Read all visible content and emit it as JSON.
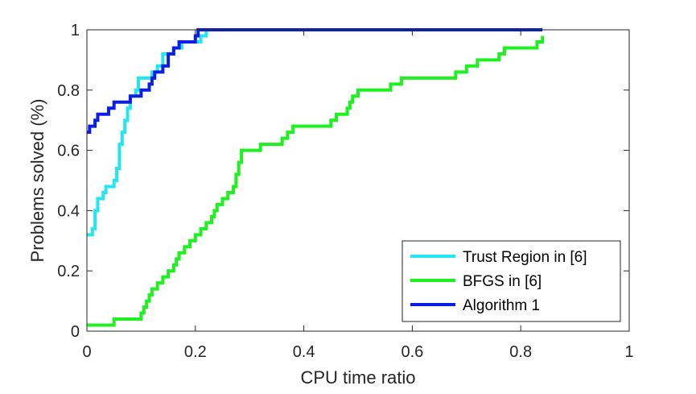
{
  "chart_data": {
    "type": "line",
    "title": "",
    "xlabel": "CPU time ratio",
    "ylabel": "Problems solved (%)",
    "xlim": [
      0,
      1
    ],
    "ylim": [
      0,
      1
    ],
    "xticks": [
      "0",
      "0.2",
      "0.4",
      "0.6",
      "0.8",
      "1"
    ],
    "yticks": [
      "0",
      "0.2",
      "0.4",
      "0.6",
      "0.8",
      "1"
    ],
    "grid": false,
    "legend_position": "bottom-right",
    "series": [
      {
        "name": "Trust Region in [6]",
        "color": "#22e6f0",
        "points": [
          [
            0.0,
            0.32
          ],
          [
            0.01,
            0.34
          ],
          [
            0.015,
            0.4
          ],
          [
            0.02,
            0.44
          ],
          [
            0.03,
            0.46
          ],
          [
            0.035,
            0.48
          ],
          [
            0.05,
            0.5
          ],
          [
            0.055,
            0.54
          ],
          [
            0.06,
            0.62
          ],
          [
            0.065,
            0.66
          ],
          [
            0.07,
            0.7
          ],
          [
            0.075,
            0.74
          ],
          [
            0.08,
            0.78
          ],
          [
            0.09,
            0.8
          ],
          [
            0.095,
            0.84
          ],
          [
            0.12,
            0.86
          ],
          [
            0.13,
            0.88
          ],
          [
            0.14,
            0.92
          ],
          [
            0.16,
            0.94
          ],
          [
            0.175,
            0.96
          ],
          [
            0.21,
            0.98
          ],
          [
            0.22,
            1.0
          ],
          [
            0.84,
            1.0
          ]
        ]
      },
      {
        "name": "BFGS in [6]",
        "color": "#1ff01f",
        "points": [
          [
            0.0,
            0.02
          ],
          [
            0.05,
            0.04
          ],
          [
            0.1,
            0.06
          ],
          [
            0.105,
            0.08
          ],
          [
            0.11,
            0.1
          ],
          [
            0.115,
            0.12
          ],
          [
            0.12,
            0.14
          ],
          [
            0.13,
            0.16
          ],
          [
            0.14,
            0.18
          ],
          [
            0.15,
            0.2
          ],
          [
            0.16,
            0.22
          ],
          [
            0.165,
            0.24
          ],
          [
            0.17,
            0.26
          ],
          [
            0.18,
            0.28
          ],
          [
            0.19,
            0.3
          ],
          [
            0.2,
            0.32
          ],
          [
            0.21,
            0.34
          ],
          [
            0.22,
            0.36
          ],
          [
            0.23,
            0.38
          ],
          [
            0.235,
            0.4
          ],
          [
            0.24,
            0.42
          ],
          [
            0.25,
            0.44
          ],
          [
            0.26,
            0.46
          ],
          [
            0.27,
            0.48
          ],
          [
            0.275,
            0.52
          ],
          [
            0.28,
            0.56
          ],
          [
            0.285,
            0.6
          ],
          [
            0.32,
            0.62
          ],
          [
            0.36,
            0.64
          ],
          [
            0.37,
            0.66
          ],
          [
            0.38,
            0.68
          ],
          [
            0.45,
            0.7
          ],
          [
            0.46,
            0.72
          ],
          [
            0.48,
            0.74
          ],
          [
            0.485,
            0.76
          ],
          [
            0.49,
            0.78
          ],
          [
            0.5,
            0.8
          ],
          [
            0.56,
            0.82
          ],
          [
            0.58,
            0.84
          ],
          [
            0.68,
            0.86
          ],
          [
            0.7,
            0.88
          ],
          [
            0.72,
            0.9
          ],
          [
            0.76,
            0.92
          ],
          [
            0.77,
            0.94
          ],
          [
            0.83,
            0.96
          ],
          [
            0.84,
            0.98
          ]
        ]
      },
      {
        "name": "Algorithm 1",
        "color": "#0a1ee6",
        "points": [
          [
            0.0,
            0.66
          ],
          [
            0.005,
            0.68
          ],
          [
            0.015,
            0.7
          ],
          [
            0.02,
            0.72
          ],
          [
            0.04,
            0.74
          ],
          [
            0.05,
            0.76
          ],
          [
            0.08,
            0.78
          ],
          [
            0.1,
            0.8
          ],
          [
            0.115,
            0.82
          ],
          [
            0.12,
            0.84
          ],
          [
            0.125,
            0.86
          ],
          [
            0.14,
            0.88
          ],
          [
            0.15,
            0.92
          ],
          [
            0.16,
            0.94
          ],
          [
            0.17,
            0.96
          ],
          [
            0.2,
            0.98
          ],
          [
            0.205,
            1.0
          ],
          [
            0.84,
            1.0
          ]
        ]
      }
    ]
  }
}
